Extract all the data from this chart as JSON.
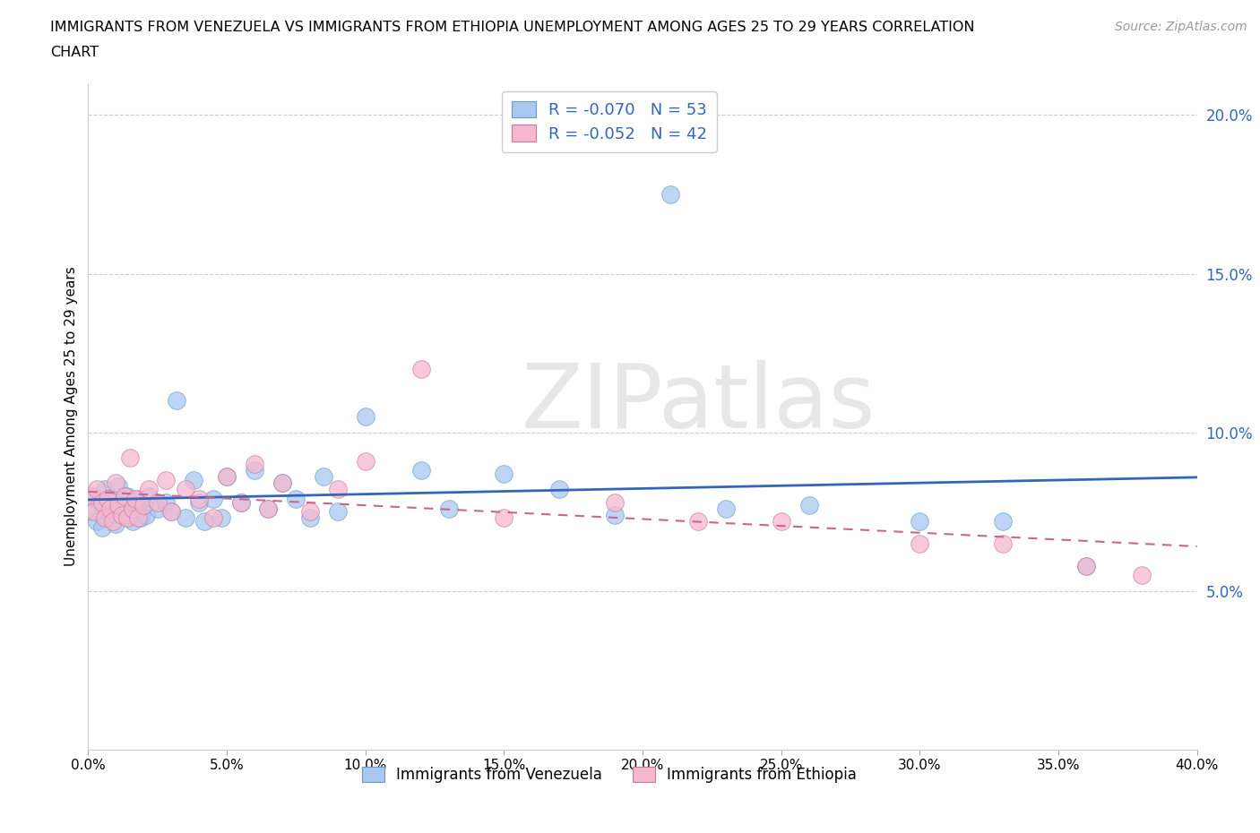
{
  "title_line1": "IMMIGRANTS FROM VENEZUELA VS IMMIGRANTS FROM ETHIOPIA UNEMPLOYMENT AMONG AGES 25 TO 29 YEARS CORRELATION",
  "title_line2": "CHART",
  "source_text": "Source: ZipAtlas.com",
  "ylabel": "Unemployment Among Ages 25 to 29 years",
  "xlim": [
    0.0,
    0.4
  ],
  "ylim": [
    0.0,
    0.21
  ],
  "yticks": [
    0.05,
    0.1,
    0.15,
    0.2
  ],
  "ytick_labels": [
    "5.0%",
    "10.0%",
    "15.0%",
    "20.0%"
  ],
  "xticks": [
    0.0,
    0.05,
    0.1,
    0.15,
    0.2,
    0.25,
    0.3,
    0.35,
    0.4
  ],
  "xtick_labels": [
    "0.0%",
    "5.0%",
    "10.0%",
    "15.0%",
    "20.0%",
    "25.0%",
    "30.0%",
    "35.0%",
    "40.0%"
  ],
  "watermark": "ZIPatlas",
  "legend_label1": "R = -0.070   N = 53",
  "legend_label2": "R = -0.052   N = 42",
  "color_venezuela": "#a8c8f0",
  "color_ethiopia": "#f5b8ce",
  "edge_venezuela": "#6699cc",
  "edge_ethiopia": "#cc7799",
  "trend_color_venezuela": "#3366bb",
  "trend_color_ethiopia": "#cc6688",
  "legend_text_color": "#3366bb",
  "background_color": "#ffffff",
  "grid_color": "#cccccc",
  "venezuela_x": [
    0.001,
    0.002,
    0.003,
    0.004,
    0.005,
    0.006,
    0.007,
    0.008,
    0.009,
    0.01,
    0.011,
    0.012,
    0.013,
    0.014,
    0.015,
    0.016,
    0.017,
    0.018,
    0.019,
    0.02,
    0.021,
    0.022,
    0.025,
    0.028,
    0.03,
    0.032,
    0.035,
    0.038,
    0.04,
    0.042,
    0.045,
    0.048,
    0.05,
    0.055,
    0.06,
    0.065,
    0.07,
    0.075,
    0.08,
    0.085,
    0.09,
    0.1,
    0.12,
    0.13,
    0.15,
    0.17,
    0.19,
    0.21,
    0.23,
    0.26,
    0.3,
    0.33,
    0.36
  ],
  "venezuela_y": [
    0.075,
    0.08,
    0.072,
    0.078,
    0.07,
    0.082,
    0.073,
    0.079,
    0.076,
    0.071,
    0.083,
    0.077,
    0.074,
    0.08,
    0.076,
    0.072,
    0.075,
    0.079,
    0.073,
    0.077,
    0.074,
    0.08,
    0.076,
    0.078,
    0.075,
    0.11,
    0.073,
    0.085,
    0.078,
    0.072,
    0.079,
    0.073,
    0.086,
    0.078,
    0.088,
    0.076,
    0.084,
    0.079,
    0.073,
    0.086,
    0.075,
    0.105,
    0.088,
    0.076,
    0.087,
    0.082,
    0.074,
    0.175,
    0.076,
    0.077,
    0.072,
    0.072,
    0.058
  ],
  "ethiopia_x": [
    0.001,
    0.002,
    0.003,
    0.005,
    0.006,
    0.007,
    0.008,
    0.009,
    0.01,
    0.011,
    0.012,
    0.013,
    0.014,
    0.015,
    0.016,
    0.017,
    0.018,
    0.02,
    0.022,
    0.025,
    0.028,
    0.03,
    0.035,
    0.04,
    0.045,
    0.05,
    0.055,
    0.06,
    0.065,
    0.07,
    0.08,
    0.09,
    0.1,
    0.12,
    0.15,
    0.19,
    0.22,
    0.25,
    0.3,
    0.33,
    0.36,
    0.38
  ],
  "ethiopia_y": [
    0.08,
    0.075,
    0.082,
    0.078,
    0.073,
    0.079,
    0.076,
    0.072,
    0.084,
    0.077,
    0.074,
    0.08,
    0.073,
    0.092,
    0.076,
    0.079,
    0.073,
    0.077,
    0.082,
    0.078,
    0.085,
    0.075,
    0.082,
    0.079,
    0.073,
    0.086,
    0.078,
    0.09,
    0.076,
    0.084,
    0.075,
    0.082,
    0.091,
    0.12,
    0.073,
    0.078,
    0.072,
    0.072,
    0.065,
    0.065,
    0.058,
    0.055
  ]
}
